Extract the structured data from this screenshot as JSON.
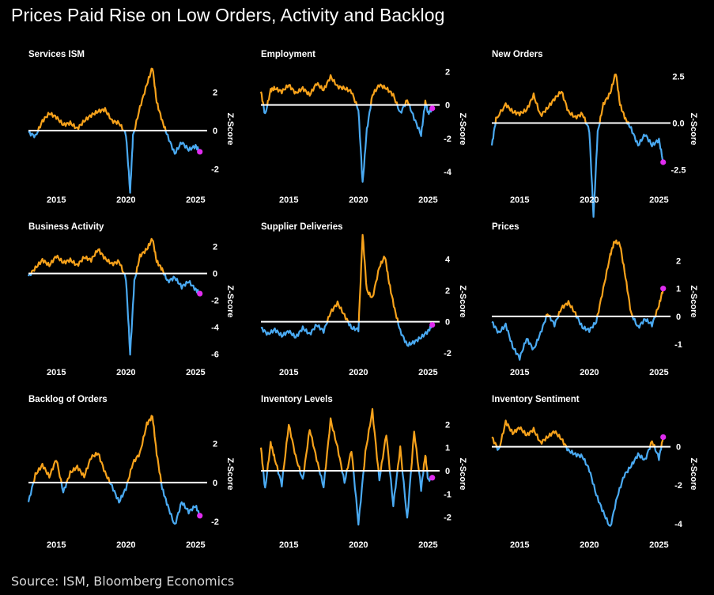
{
  "header": {
    "title": "Prices Paid Rise on Low Orders, Activity and Backlog"
  },
  "footer": {
    "source": "Source: ISM, Bloomberg Economics"
  },
  "colors": {
    "positive": "#f7a21b",
    "negative": "#4aaaf2",
    "zero_line": "#ffffff",
    "marker": "#e02cf0",
    "background": "#000000",
    "text": "#ffffff"
  },
  "chart_data": [
    {
      "type": "area",
      "title": "Services ISM",
      "ylabel": "Z-Score",
      "ylim": [
        -3,
        3.5
      ],
      "yticks": [
        -2,
        0,
        2
      ],
      "xlim": [
        2013.0,
        2025.6
      ],
      "xticks": [
        2015,
        2020,
        2025
      ],
      "x": [
        2013.0,
        2013.5,
        2014.0,
        2014.5,
        2015.0,
        2015.5,
        2016.0,
        2016.5,
        2017.0,
        2017.5,
        2018.0,
        2018.5,
        2019.0,
        2019.5,
        2020.0,
        2020.3,
        2020.5,
        2021.0,
        2021.5,
        2021.9,
        2022.2,
        2022.6,
        2023.0,
        2023.5,
        2024.0,
        2024.5,
        2025.0,
        2025.3
      ],
      "values": [
        -0.1,
        -0.3,
        0.5,
        0.9,
        0.7,
        0.3,
        0.4,
        0.1,
        0.5,
        0.8,
        1.0,
        1.1,
        0.5,
        0.4,
        -0.2,
        -3.2,
        -0.3,
        1.2,
        2.4,
        3.3,
        1.5,
        0.5,
        -0.3,
        -1.2,
        -0.6,
        -1.0,
        -0.8,
        -1.1
      ],
      "marker": {
        "x": 2025.3,
        "y": -1.1
      }
    },
    {
      "type": "area",
      "title": "Employment",
      "ylabel": "Z-Score",
      "ylim": [
        -5,
        2.5
      ],
      "yticks": [
        -4,
        -2,
        0,
        2
      ],
      "xlim": [
        2013.0,
        2025.6
      ],
      "xticks": [
        2015,
        2020,
        2025
      ],
      "x": [
        2013.0,
        2013.3,
        2013.7,
        2014.0,
        2014.5,
        2015.0,
        2015.5,
        2016.0,
        2016.5,
        2017.0,
        2017.5,
        2018.0,
        2018.5,
        2019.0,
        2019.5,
        2020.0,
        2020.3,
        2020.6,
        2021.0,
        2021.5,
        2022.0,
        2022.5,
        2023.0,
        2023.5,
        2024.0,
        2024.5,
        2024.8,
        2025.0,
        2025.3
      ],
      "values": [
        0.8,
        -0.6,
        0.9,
        1.0,
        0.8,
        1.2,
        0.7,
        1.0,
        0.6,
        1.3,
        0.9,
        1.7,
        1.1,
        1.0,
        0.8,
        -0.3,
        -4.7,
        -1.5,
        0.6,
        1.2,
        1.0,
        0.6,
        -0.5,
        0.3,
        -0.8,
        -1.8,
        0.2,
        -0.5,
        -0.2
      ],
      "marker": {
        "x": 2025.3,
        "y": -0.2
      }
    },
    {
      "type": "area",
      "title": "New Orders",
      "ylabel": "Z-Score",
      "ylim": [
        -3.5,
        3.2
      ],
      "yticks": [
        -2.5,
        0.0,
        2.5
      ],
      "ytick_labels": [
        "-2.5",
        "0.0",
        "2.5"
      ],
      "xlim": [
        2013.0,
        2025.6
      ],
      "xticks": [
        2015,
        2020,
        2025
      ],
      "x": [
        2013.0,
        2013.3,
        2014.0,
        2014.5,
        2015.0,
        2015.5,
        2016.0,
        2016.5,
        2017.0,
        2017.5,
        2018.0,
        2018.5,
        2019.0,
        2019.5,
        2020.0,
        2020.3,
        2020.6,
        2021.0,
        2021.5,
        2021.9,
        2022.2,
        2022.6,
        2023.0,
        2023.5,
        2024.0,
        2024.5,
        2025.0,
        2025.3
      ],
      "values": [
        -1.2,
        0.2,
        1.0,
        0.6,
        0.5,
        0.7,
        1.5,
        0.4,
        0.8,
        1.3,
        1.7,
        0.6,
        0.3,
        0.5,
        -0.4,
        -5.0,
        -0.5,
        1.0,
        1.6,
        2.7,
        1.0,
        0.2,
        -0.3,
        -1.2,
        -0.6,
        -1.2,
        -0.9,
        -2.1
      ],
      "marker": {
        "x": 2025.3,
        "y": -2.1
      }
    },
    {
      "type": "area",
      "title": "Business Activity",
      "ylabel": "Z-Score",
      "ylim": [
        -6.5,
        2.8
      ],
      "yticks": [
        -6,
        -4,
        -2,
        0,
        2
      ],
      "xlim": [
        2013.0,
        2025.6
      ],
      "xticks": [
        2015,
        2020,
        2025
      ],
      "x": [
        2013.0,
        2013.5,
        2014.0,
        2014.5,
        2015.0,
        2015.5,
        2016.0,
        2016.5,
        2017.0,
        2017.5,
        2018.0,
        2018.5,
        2019.0,
        2019.5,
        2020.0,
        2020.3,
        2020.6,
        2021.0,
        2021.5,
        2021.9,
        2022.2,
        2022.6,
        2023.0,
        2023.5,
        2024.0,
        2024.5,
        2025.0,
        2025.3
      ],
      "values": [
        -0.2,
        0.4,
        1.0,
        0.6,
        1.3,
        0.8,
        1.0,
        0.6,
        1.2,
        1.0,
        1.8,
        1.1,
        0.7,
        0.9,
        -0.4,
        -6.0,
        -0.6,
        1.3,
        1.8,
        2.6,
        0.9,
        0.3,
        -0.6,
        -0.3,
        -1.0,
        -0.6,
        -1.2,
        -1.5
      ],
      "marker": {
        "x": 2025.3,
        "y": -1.5
      }
    },
    {
      "type": "area",
      "title": "Supplier Deliveries",
      "ylabel": "Z-Score",
      "ylim": [
        -2.5,
        5.5
      ],
      "yticks": [
        -2,
        0,
        2,
        4
      ],
      "xlim": [
        2013.0,
        2025.6
      ],
      "xticks": [
        2015,
        2020,
        2025
      ],
      "x": [
        2013.0,
        2013.5,
        2014.0,
        2014.5,
        2015.0,
        2015.5,
        2016.0,
        2016.5,
        2017.0,
        2017.5,
        2018.0,
        2018.5,
        2019.0,
        2019.5,
        2020.0,
        2020.3,
        2020.6,
        2021.0,
        2021.5,
        2021.9,
        2022.2,
        2022.6,
        2023.0,
        2023.5,
        2024.0,
        2024.5,
        2025.0,
        2025.3
      ],
      "values": [
        -0.4,
        -0.8,
        -0.5,
        -0.9,
        -0.6,
        -1.0,
        -0.4,
        -0.8,
        -0.2,
        -0.6,
        0.6,
        1.2,
        0.4,
        -0.4,
        -0.5,
        5.6,
        2.0,
        1.5,
        3.5,
        4.2,
        2.5,
        0.8,
        -0.6,
        -1.5,
        -1.3,
        -1.0,
        -0.6,
        -0.2
      ],
      "marker": {
        "x": 2025.3,
        "y": -0.2
      }
    },
    {
      "type": "area",
      "title": "Prices",
      "ylabel": "Z-Score",
      "ylim": [
        -1.6,
        2.9
      ],
      "yticks": [
        -1,
        0,
        1,
        2
      ],
      "xlim": [
        2013.0,
        2025.6
      ],
      "xticks": [
        2015,
        2020,
        2025
      ],
      "x": [
        2013.0,
        2013.5,
        2014.0,
        2014.5,
        2015.0,
        2015.5,
        2016.0,
        2016.5,
        2017.0,
        2017.5,
        2018.0,
        2018.5,
        2019.0,
        2019.5,
        2020.0,
        2020.5,
        2021.0,
        2021.5,
        2021.8,
        2022.2,
        2022.6,
        2023.0,
        2023.5,
        2024.0,
        2024.5,
        2025.0,
        2025.3
      ],
      "values": [
        -0.2,
        -0.6,
        -0.3,
        -1.1,
        -1.5,
        -0.8,
        -1.2,
        -0.6,
        0.1,
        -0.3,
        0.3,
        0.5,
        0.1,
        -0.4,
        -0.5,
        -0.2,
        1.0,
        2.2,
        2.7,
        2.6,
        1.4,
        0.1,
        -0.4,
        -0.1,
        -0.3,
        0.4,
        1.0
      ],
      "marker": {
        "x": 2025.3,
        "y": 1.0
      }
    },
    {
      "type": "area",
      "title": "Backlog of Orders",
      "ylabel": "Z-Score",
      "ylim": [
        -2.6,
        3.8
      ],
      "yticks": [
        -2,
        0,
        2
      ],
      "xlim": [
        2013.0,
        2025.6
      ],
      "xticks": [
        2015,
        2020,
        2025
      ],
      "x": [
        2013.0,
        2013.5,
        2014.0,
        2014.5,
        2015.0,
        2015.5,
        2016.0,
        2016.5,
        2017.0,
        2017.5,
        2018.0,
        2018.5,
        2019.0,
        2019.5,
        2020.0,
        2020.5,
        2021.0,
        2021.5,
        2021.9,
        2022.2,
        2022.6,
        2023.0,
        2023.5,
        2024.0,
        2024.5,
        2025.0,
        2025.3
      ],
      "values": [
        -1.0,
        0.4,
        0.9,
        0.3,
        1.2,
        -0.5,
        0.5,
        0.8,
        0.3,
        1.3,
        1.5,
        0.5,
        -0.2,
        -1.0,
        -0.3,
        1.0,
        1.5,
        3.0,
        3.4,
        1.5,
        -0.3,
        -1.2,
        -2.2,
        -1.0,
        -1.5,
        -1.2,
        -1.7
      ],
      "marker": {
        "x": 2025.3,
        "y": -1.7
      }
    },
    {
      "type": "area",
      "title": "Inventory Levels",
      "ylabel": "Z-Score",
      "ylim": [
        -2.7,
        2.7
      ],
      "yticks": [
        -2,
        -1,
        0,
        1,
        2
      ],
      "xlim": [
        2013.0,
        2025.6
      ],
      "xticks": [
        2015,
        2020,
        2025
      ],
      "x": [
        2013.0,
        2013.3,
        2013.7,
        2014.0,
        2014.5,
        2015.0,
        2015.5,
        2016.0,
        2016.5,
        2017.0,
        2017.5,
        2018.0,
        2018.5,
        2019.0,
        2019.5,
        2020.0,
        2020.5,
        2021.0,
        2021.5,
        2022.0,
        2022.5,
        2023.0,
        2023.5,
        2024.0,
        2024.5,
        2024.8,
        2025.0,
        2025.3
      ],
      "values": [
        1.0,
        -0.8,
        1.2,
        0.5,
        -0.6,
        2.0,
        0.6,
        -0.4,
        1.8,
        0.5,
        -0.7,
        2.2,
        1.0,
        -0.5,
        0.9,
        -2.3,
        0.8,
        2.6,
        -0.4,
        1.6,
        -1.5,
        1.0,
        -2.1,
        1.7,
        -0.8,
        0.7,
        -0.4,
        -0.3
      ],
      "marker": {
        "x": 2025.3,
        "y": -0.3
      }
    },
    {
      "type": "area",
      "title": "Inventory Sentiment",
      "ylabel": "Z-Score",
      "ylim": [
        -4.5,
        2.0
      ],
      "yticks": [
        -4,
        -2,
        0
      ],
      "xlim": [
        2013.0,
        2025.6
      ],
      "xticks": [
        2015,
        2020,
        2025
      ],
      "x": [
        2013.0,
        2013.5,
        2014.0,
        2014.5,
        2015.0,
        2015.5,
        2016.0,
        2016.5,
        2017.0,
        2017.5,
        2018.0,
        2018.5,
        2019.0,
        2019.5,
        2020.0,
        2020.5,
        2021.0,
        2021.5,
        2022.0,
        2022.5,
        2023.0,
        2023.5,
        2024.0,
        2024.5,
        2025.0,
        2025.3
      ],
      "values": [
        0.5,
        -0.2,
        1.3,
        0.7,
        1.0,
        0.6,
        0.9,
        0.2,
        0.5,
        0.8,
        0.4,
        -0.2,
        -0.4,
        -0.5,
        -1.2,
        -2.5,
        -3.4,
        -4.2,
        -2.6,
        -1.5,
        -1.0,
        -0.4,
        -0.7,
        0.3,
        -0.6,
        0.5
      ],
      "marker": {
        "x": 2025.3,
        "y": 0.5
      }
    }
  ]
}
